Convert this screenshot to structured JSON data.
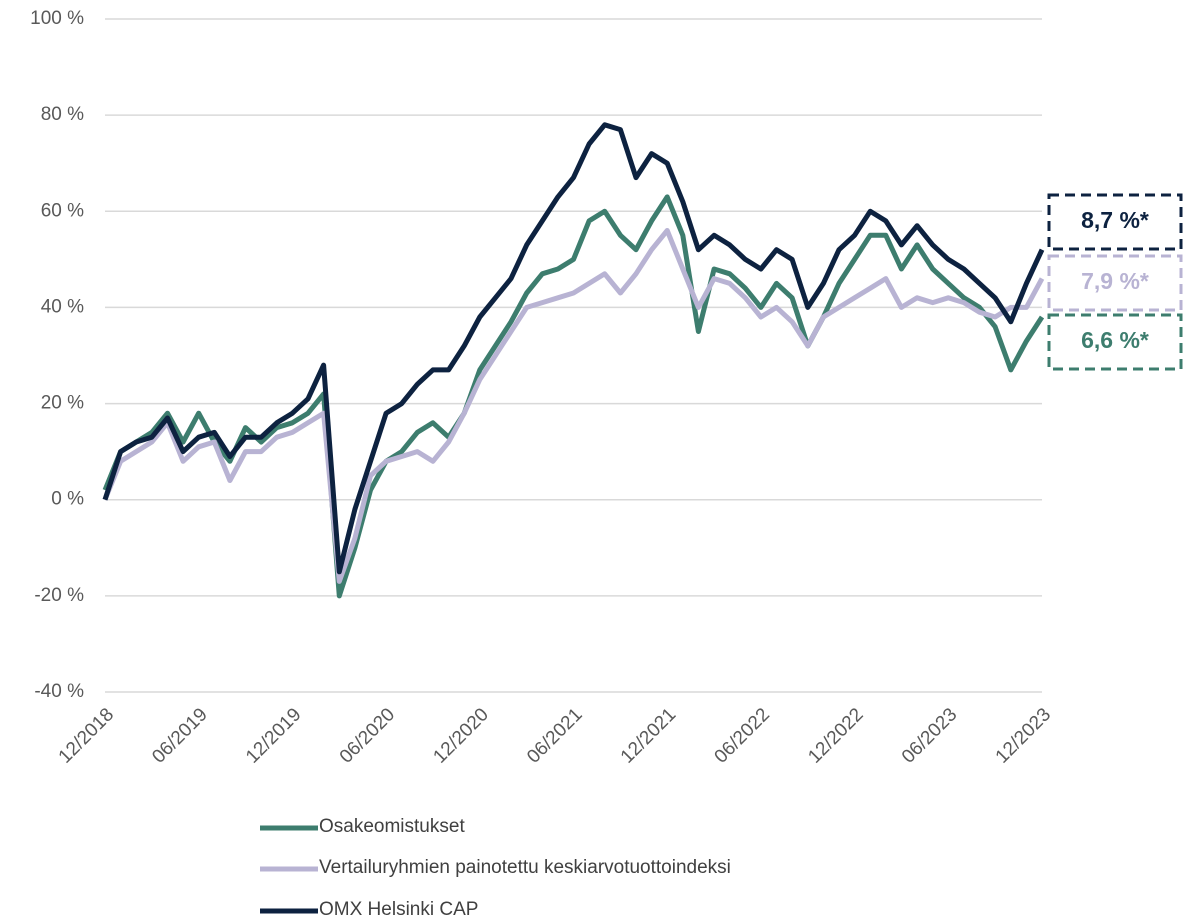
{
  "chart_data": {
    "type": "line",
    "x": [
      "12/2018",
      "01/2019",
      "02/2019",
      "03/2019",
      "04/2019",
      "05/2019",
      "06/2019",
      "07/2019",
      "08/2019",
      "09/2019",
      "10/2019",
      "11/2019",
      "12/2019",
      "01/2020",
      "02/2020",
      "03/2020",
      "04/2020",
      "05/2020",
      "06/2020",
      "07/2020",
      "08/2020",
      "09/2020",
      "10/2020",
      "11/2020",
      "12/2020",
      "01/2021",
      "02/2021",
      "03/2021",
      "04/2021",
      "05/2021",
      "06/2021",
      "07/2021",
      "08/2021",
      "09/2021",
      "10/2021",
      "11/2021",
      "12/2021",
      "01/2022",
      "02/2022",
      "03/2022",
      "04/2022",
      "05/2022",
      "06/2022",
      "07/2022",
      "08/2022",
      "09/2022",
      "10/2022",
      "11/2022",
      "12/2022",
      "01/2023",
      "02/2023",
      "03/2023",
      "04/2023",
      "05/2023",
      "06/2023",
      "07/2023",
      "08/2023",
      "09/2023",
      "10/2023",
      "11/2023",
      "12/2023"
    ],
    "xticks": [
      "12/2018",
      "06/2019",
      "12/2019",
      "06/2020",
      "12/2020",
      "06/2021",
      "12/2021",
      "06/2022",
      "12/2022",
      "06/2023",
      "12/2023"
    ],
    "ylim": [
      -40,
      100
    ],
    "yticks": [
      {
        "value": -40,
        "label": "-40 %"
      },
      {
        "value": -20,
        "label": "-20 %"
      },
      {
        "value": 0,
        "label": "0 %"
      },
      {
        "value": 20,
        "label": "20 %"
      },
      {
        "value": 40,
        "label": "40 %"
      },
      {
        "value": 60,
        "label": "60 %"
      },
      {
        "value": 80,
        "label": "80 %"
      },
      {
        "value": 100,
        "label": "100 %"
      }
    ],
    "grid": true,
    "series": [
      {
        "name": "Osakeomistukset",
        "color": "#3d7d6e",
        "values": [
          2,
          10,
          12,
          14,
          18,
          12,
          18,
          12,
          8,
          15,
          12,
          15,
          16,
          18,
          22,
          -20,
          -10,
          2,
          8,
          10,
          14,
          16,
          13,
          18,
          27,
          32,
          37,
          43,
          47,
          48,
          50,
          58,
          60,
          55,
          52,
          58,
          63,
          55,
          35,
          48,
          47,
          44,
          40,
          45,
          42,
          32,
          38,
          45,
          50,
          55,
          55,
          48,
          53,
          48,
          45,
          42,
          40,
          36,
          27,
          33,
          38
        ]
      },
      {
        "name": "Vertailuryhmien painotettu keskiarvotuottoindeksi",
        "color": "#b8b3d3",
        "values": [
          0,
          8,
          10,
          12,
          16,
          8,
          11,
          12,
          4,
          10,
          10,
          13,
          14,
          16,
          18,
          -17,
          -8,
          5,
          8,
          9,
          10,
          8,
          12,
          18,
          25,
          30,
          35,
          40,
          41,
          42,
          43,
          45,
          47,
          43,
          47,
          52,
          56,
          48,
          40,
          46,
          45,
          42,
          38,
          40,
          37,
          32,
          38,
          40,
          42,
          44,
          46,
          40,
          42,
          41,
          42,
          41,
          39,
          38,
          40,
          40,
          46
        ]
      },
      {
        "name": "OMX Helsinki CAP",
        "color": "#0d2240",
        "values": [
          0,
          10,
          12,
          13,
          17,
          10,
          13,
          14,
          9,
          13,
          13,
          16,
          18,
          21,
          28,
          -15,
          -2,
          8,
          18,
          20,
          24,
          27,
          27,
          32,
          38,
          42,
          46,
          53,
          58,
          63,
          67,
          74,
          78,
          77,
          67,
          72,
          70,
          62,
          52,
          55,
          53,
          50,
          48,
          52,
          50,
          40,
          45,
          52,
          55,
          60,
          58,
          53,
          57,
          53,
          50,
          48,
          45,
          42,
          37,
          45,
          52
        ]
      }
    ],
    "annotations": [
      {
        "text": "8,7 %*",
        "color": "#0d2240"
      },
      {
        "text": "7,9 %*",
        "color": "#b8b3d3"
      },
      {
        "text": "6,6 %*",
        "color": "#3d7d6e"
      }
    ]
  }
}
